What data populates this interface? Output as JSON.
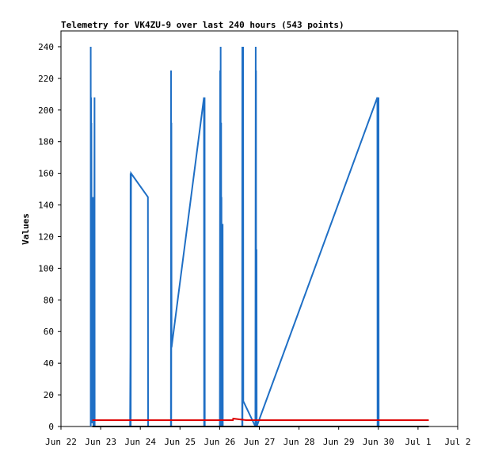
{
  "chart_data": {
    "type": "line",
    "title": "Telemetry for VK4ZU-9 over last 240 hours (543 points)",
    "ylabel": "Values",
    "xlabel": "",
    "xlim_hours": [
      0,
      240
    ],
    "ylim": [
      0,
      250
    ],
    "yticks": [
      0,
      20,
      40,
      60,
      80,
      100,
      120,
      140,
      160,
      180,
      200,
      220,
      240
    ],
    "xticks": [
      {
        "label": "Jun 22",
        "hours": 0
      },
      {
        "label": "Jun 23",
        "hours": 24
      },
      {
        "label": "Jun 24",
        "hours": 48
      },
      {
        "label": "Jun 25",
        "hours": 72
      },
      {
        "label": "Jun 26",
        "hours": 96
      },
      {
        "label": "Jun 27",
        "hours": 120
      },
      {
        "label": "Jun 28",
        "hours": 144
      },
      {
        "label": "Jun 29",
        "hours": 168
      },
      {
        "label": "Jun 30",
        "hours": 192
      },
      {
        "label": "Jul 1",
        "hours": 216
      },
      {
        "label": "Jul 2",
        "hours": 240
      }
    ],
    "grid": false,
    "series": [
      {
        "color": "#1f6fc5",
        "points": [
          [
            18.0,
            0
          ],
          [
            18.0,
            240
          ],
          [
            18.1,
            5
          ],
          [
            18.2,
            208
          ],
          [
            18.3,
            3
          ],
          [
            18.4,
            192
          ],
          [
            18.6,
            68
          ],
          [
            18.7,
            2
          ],
          [
            19.0,
            40
          ],
          [
            19.1,
            3
          ],
          [
            19.3,
            145
          ],
          [
            19.4,
            5
          ],
          [
            19.5,
            72
          ],
          [
            19.6,
            0
          ],
          [
            19.9,
            145
          ],
          [
            20.0,
            3
          ],
          [
            20.3,
            208
          ],
          [
            20.4,
            0
          ],
          [
            41.8,
            0
          ],
          [
            42.0,
            48
          ],
          [
            42.1,
            160
          ],
          [
            42.2,
            0
          ],
          [
            42.4,
            160
          ],
          [
            52.6,
            145
          ],
          [
            52.7,
            0
          ],
          [
            66.5,
            0
          ],
          [
            66.6,
            225
          ],
          [
            66.7,
            0
          ],
          [
            66.8,
            192
          ],
          [
            66.9,
            50
          ],
          [
            86.5,
            208
          ],
          [
            86.6,
            0
          ],
          [
            86.9,
            208
          ],
          [
            87.0,
            0
          ],
          [
            96.1,
            0
          ],
          [
            96.2,
            128
          ],
          [
            96.3,
            225
          ],
          [
            96.4,
            0
          ],
          [
            96.6,
            240
          ],
          [
            96.7,
            3
          ],
          [
            96.9,
            192
          ],
          [
            97.0,
            0
          ],
          [
            97.1,
            145
          ],
          [
            97.2,
            2
          ],
          [
            97.4,
            112
          ],
          [
            97.5,
            0
          ],
          [
            97.8,
            128
          ],
          [
            97.9,
            0
          ],
          [
            109.6,
            0
          ],
          [
            109.7,
            240
          ],
          [
            109.8,
            0
          ],
          [
            110.2,
            240
          ],
          [
            110.3,
            16
          ],
          [
            117.6,
            0
          ],
          [
            117.8,
            240
          ],
          [
            117.9,
            2
          ],
          [
            118.0,
            225
          ],
          [
            118.1,
            0
          ],
          [
            118.3,
            112
          ],
          [
            118.4,
            0
          ],
          [
            191.4,
            208
          ],
          [
            191.5,
            0
          ],
          [
            191.7,
            160
          ],
          [
            191.8,
            0
          ],
          [
            192.1,
            208
          ],
          [
            192.2,
            0
          ]
        ]
      },
      {
        "color": "#dd0000",
        "points": [
          [
            19.0,
            4
          ],
          [
            104.0,
            4
          ],
          [
            104.2,
            5
          ],
          [
            108.0,
            4.5
          ],
          [
            112.0,
            4
          ],
          [
            222.5,
            4
          ]
        ]
      },
      {
        "color": "#000000",
        "points": [
          [
            19.0,
            0
          ],
          [
            222.5,
            0
          ]
        ]
      }
    ]
  }
}
